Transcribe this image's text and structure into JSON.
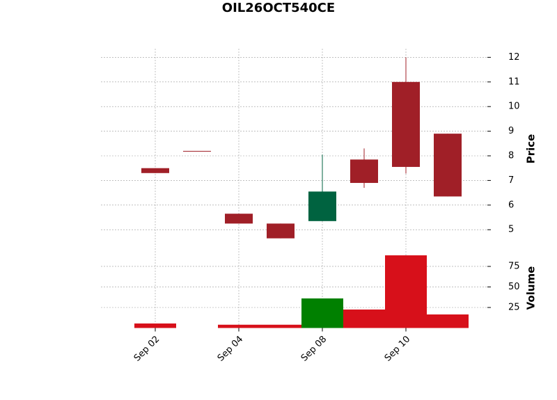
{
  "chart_data": {
    "type": "candlestick",
    "title": "OIL26OCT540CE",
    "categories": [
      "Sep 02",
      null,
      "Sep 04",
      null,
      "Sep 08",
      null,
      "Sep 10",
      null
    ],
    "open": [
      7.5,
      8.2,
      5.65,
      5.25,
      5.35,
      7.85,
      11.0,
      8.9
    ],
    "high": [
      7.5,
      8.2,
      5.65,
      5.25,
      8.05,
      8.3,
      12.0,
      8.9
    ],
    "low": [
      7.3,
      8.2,
      5.25,
      4.65,
      5.35,
      6.7,
      7.28,
      6.35
    ],
    "close": [
      7.3,
      8.2,
      5.25,
      4.65,
      6.55,
      6.9,
      7.55,
      6.35
    ],
    "volume": [
      5.5,
      0,
      4,
      4,
      36,
      22.5,
      88.5,
      16.5
    ],
    "up_color": "#006340",
    "down_color": "#a01f27",
    "volume_up_color": "#008000",
    "volume_down_color": "#d7101a",
    "ylabel": "Price",
    "ylim": [
      4.3,
      12.35
    ],
    "yticks": [
      5,
      6,
      7,
      8,
      9,
      10,
      11,
      12
    ],
    "volume_label": "Volume",
    "volume_ylim": [
      0,
      97
    ],
    "volume_yticks": [
      25,
      50,
      75
    ],
    "grid": true
  }
}
